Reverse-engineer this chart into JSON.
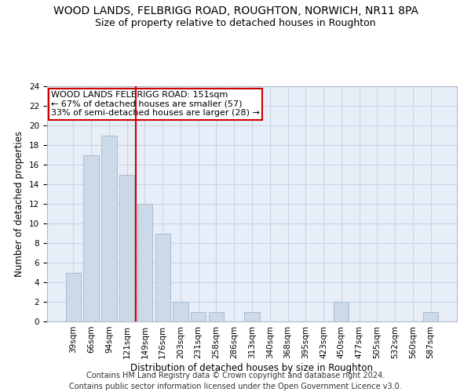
{
  "title": "WOOD LANDS, FELBRIGG ROAD, ROUGHTON, NORWICH, NR11 8PA",
  "subtitle": "Size of property relative to detached houses in Roughton",
  "xlabel": "Distribution of detached houses by size in Roughton",
  "ylabel": "Number of detached properties",
  "categories": [
    "39sqm",
    "66sqm",
    "94sqm",
    "121sqm",
    "149sqm",
    "176sqm",
    "203sqm",
    "231sqm",
    "258sqm",
    "286sqm",
    "313sqm",
    "340sqm",
    "368sqm",
    "395sqm",
    "423sqm",
    "450sqm",
    "477sqm",
    "505sqm",
    "532sqm",
    "560sqm",
    "587sqm"
  ],
  "values": [
    5,
    17,
    19,
    15,
    12,
    9,
    2,
    1,
    1,
    0,
    1,
    0,
    0,
    0,
    0,
    2,
    0,
    0,
    0,
    0,
    1
  ],
  "bar_color": "#ccd9e8",
  "bar_edgecolor": "#aabbd0",
  "vline_x_index": 3.5,
  "vline_color": "#cc0000",
  "annotation_box_text": "WOOD LANDS FELBRIGG ROAD: 151sqm\n← 67% of detached houses are smaller (57)\n33% of semi-detached houses are larger (28) →",
  "annotation_box_color": "#cc0000",
  "ylim": [
    0,
    24
  ],
  "yticks": [
    0,
    2,
    4,
    6,
    8,
    10,
    12,
    14,
    16,
    18,
    20,
    22,
    24
  ],
  "grid_color": "#c8d4e4",
  "background_color": "#e8eef8",
  "footer_line1": "Contains HM Land Registry data © Crown copyright and database right 2024.",
  "footer_line2": "Contains public sector information licensed under the Open Government Licence v3.0.",
  "title_fontsize": 10,
  "subtitle_fontsize": 9,
  "axis_label_fontsize": 8.5,
  "tick_fontsize": 7.5,
  "annotation_fontsize": 8,
  "footer_fontsize": 7
}
